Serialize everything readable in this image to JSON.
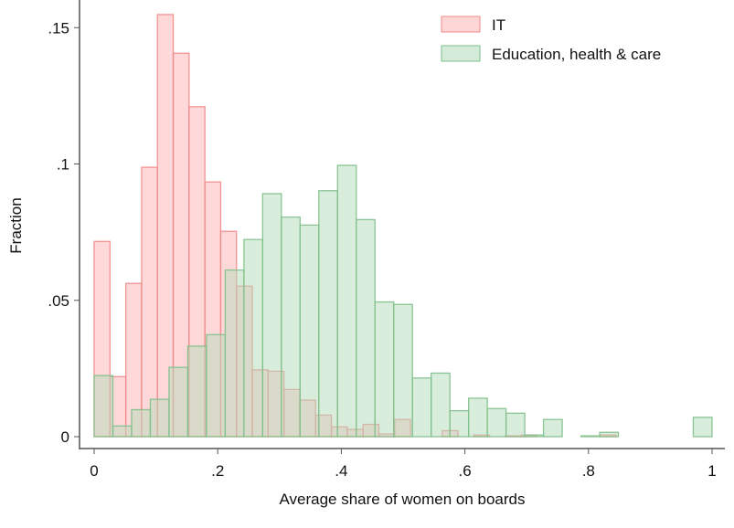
{
  "chart_data": {
    "type": "bar",
    "subtype": "overlaid histogram",
    "xlabel": "Average share of women on boards",
    "ylabel": "Fraction",
    "xlim": [
      0,
      1
    ],
    "ylim": [
      0,
      0.155
    ],
    "xticks": [
      0,
      0.2,
      0.4,
      0.6,
      0.8,
      1
    ],
    "xtick_labels": [
      "0",
      ".2",
      ".4",
      ".6",
      ".8",
      "1"
    ],
    "yticks": [
      0,
      0.05,
      0.1,
      0.15
    ],
    "ytick_labels": [
      "0",
      ".05",
      ".1",
      ".15"
    ],
    "grid": false,
    "legend_position": "top-right",
    "series": [
      {
        "name": "IT",
        "color": "#f08a8a",
        "fill": "#ffb4b4",
        "bin_start": 0,
        "bin_width": 0.0256,
        "values": [
          0.0716,
          0.022,
          0.0562,
          0.0988,
          0.1548,
          0.1406,
          0.121,
          0.0934,
          0.0753,
          0.0552,
          0.0245,
          0.024,
          0.0173,
          0.0134,
          0.0079,
          0.0036,
          0.0027,
          0.0045,
          0.001,
          0.0063,
          0,
          0,
          0.0022,
          0,
          0.0006,
          0,
          0.0003,
          0.0006,
          0,
          0,
          0,
          0,
          0.0006
        ]
      },
      {
        "name": "Education, health & care",
        "color": "#7fbf8a",
        "fill": "#b3dbbb",
        "bin_start": 0,
        "bin_width": 0.0303,
        "values": [
          0.0224,
          0.0039,
          0.0099,
          0.0137,
          0.0254,
          0.0332,
          0.0374,
          0.0611,
          0.0723,
          0.0891,
          0.0805,
          0.0776,
          0.0902,
          0.0995,
          0.0796,
          0.0494,
          0.0485,
          0.0215,
          0.0233,
          0.0095,
          0.0141,
          0.0103,
          0.0086,
          0.0006,
          0.0063,
          0,
          0.0003,
          0.0016,
          0,
          0,
          0,
          0,
          0.0071
        ]
      }
    ]
  }
}
